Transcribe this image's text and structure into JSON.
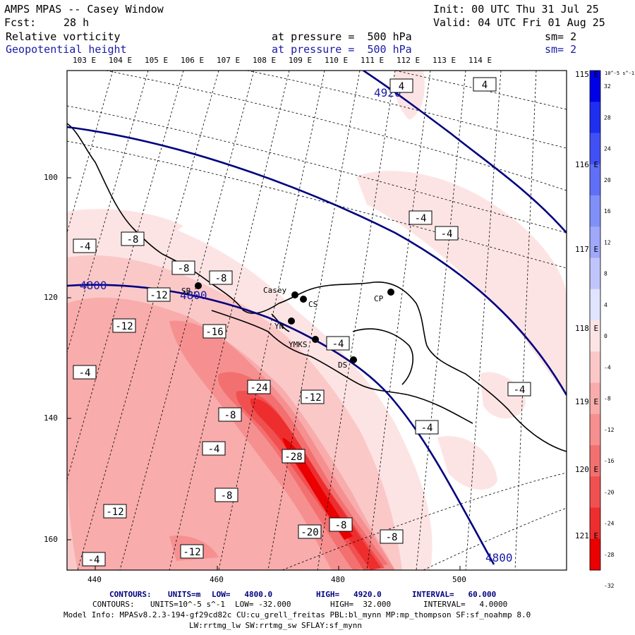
{
  "header": {
    "title": "AMPS MPAS -- Casey Window",
    "init": "Init: 00 UTC Thu 31 Jul 25",
    "fcst_label": "Fcst:",
    "fcst_value": "28 h",
    "valid": "Valid: 04 UTC Fri 01 Aug 25",
    "field1_name": "Relative vorticity",
    "field1_level": "at pressure =  500 hPa",
    "field1_sm": "sm= 2",
    "field2_name": "Geopotential height",
    "field2_level": "at pressure =  500 hPa",
    "field2_sm": "sm= 2"
  },
  "top_longitude_labels": [
    "103 E",
    "104 E",
    "105 E",
    "106 E",
    "107 E",
    "108 E",
    "109 E",
    "110 E",
    "111 E",
    "112 E",
    "113 E",
    "114 E"
  ],
  "right_longitude_labels": [
    "115 E",
    "116 E",
    "117 E",
    "118 E",
    "119 E",
    "120 E",
    "121 E"
  ],
  "left_axis_ticks": [
    "100",
    "120",
    "140",
    "160"
  ],
  "bottom_axis_ticks": [
    "440",
    "460",
    "480",
    "500"
  ],
  "colorbar": {
    "unit_label": "10^-5 s^-1",
    "labels": [
      "32",
      "28",
      "24",
      "20",
      "16",
      "12",
      "8",
      "4",
      "0",
      "-4",
      "-8",
      "-12",
      "-16",
      "-20",
      "-24",
      "-28",
      "-32"
    ],
    "colors": {
      "positive": [
        "#0000e6",
        "#1f2ff0",
        "#4050f4",
        "#6070f6",
        "#8090f8",
        "#a0a8fa",
        "#c0c6fc",
        "#e0e4fe"
      ],
      "negative": [
        "#fde4e4",
        "#fbc8c8",
        "#f8acac",
        "#f69090",
        "#f37070",
        "#f05050",
        "#ee2e2e",
        "#ea0000"
      ]
    }
  },
  "contour_labels": {
    "vorticity": [
      "4",
      "4",
      "-4",
      "-4",
      "-4",
      "-8",
      "-8",
      "-8",
      "-12",
      "-12",
      "-16",
      "-24",
      "-12",
      "-8",
      "-4",
      "-4",
      "-4",
      "-4",
      "-4",
      "-28",
      "-8",
      "-8",
      "-12",
      "-20",
      "-8",
      "-12",
      "-4"
    ],
    "height": [
      "4920",
      "4800",
      "4800",
      "4800"
    ]
  },
  "stations": [
    "Casey",
    "CS",
    "CP",
    "SB",
    "YN",
    "YMKS",
    "DS"
  ],
  "footer": {
    "line1_contours": "CONTOURS:",
    "line1_units": "UNITS=m",
    "line1_low": "LOW=   4800.0",
    "line1_high": "HIGH=   4920.0",
    "line1_interval": "INTERVAL=   60.000",
    "line2_contours": "CONTOURS:",
    "line2_units": "UNITS=10^-5 s^-1",
    "line2_low": "LOW= -32.000",
    "line2_high": "HIGH=  32.000",
    "line2_interval": "INTERVAL=   4.0000",
    "model_info": "Model Info: MPASv8.2.3-194-gf29cd82c CU:cu_grell_freitas PBL:bl_mynn MP:mp_thompson SF:sf_noahmp 8.0",
    "model_info2": "LW:rrtmg_lw SW:rrtmg_sw SFLAY:sf_mynn"
  }
}
